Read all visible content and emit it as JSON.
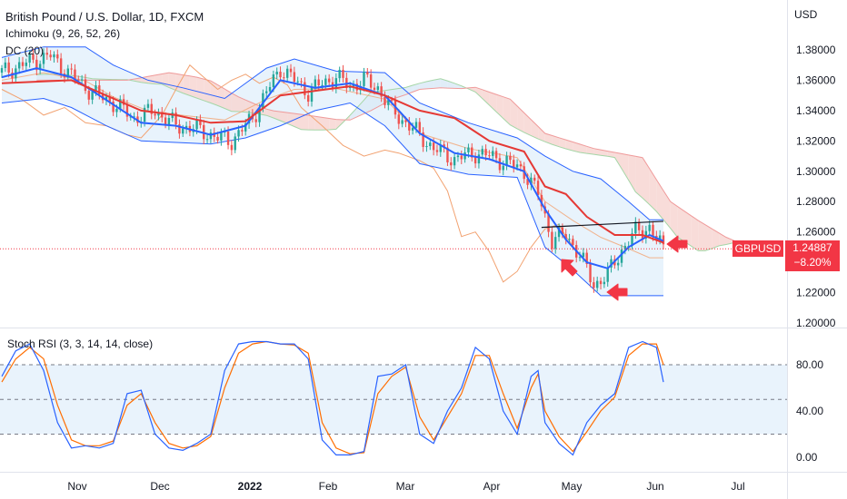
{
  "header": {
    "symbol_title": "British Pound / U.S. Dollar, 1D, FXCM",
    "indicator_1": "Ichimoku (9, 26, 52, 26)",
    "indicator_2": "DC (20)",
    "currency": "USD",
    "sub_indicator": "Stoch RSI (3, 3, 14, 14, close)"
  },
  "price_tag": {
    "symbol": "GBPUSD",
    "price": "1.24887",
    "change": "−8.20%",
    "color": "#f23645"
  },
  "colors": {
    "up": "#26a69a",
    "down": "#ef5350",
    "conversion": "#2962ff",
    "base": "#e53935",
    "lagging": "#f2a271",
    "cloud_bull": "#dbeaf7",
    "cloud_bear": "#f7d6d2",
    "donchian": "#2962ff",
    "donchian_fill": "#e8f3fc",
    "stoch_k": "#2962ff",
    "stoch_d": "#ff6d00"
  },
  "chart_data": [
    {
      "type": "candlestick",
      "title": "British Pound / U.S. Dollar, 1D, FXCM",
      "ylim": [
        1.19,
        1.395
      ],
      "y_ticks": [
        "1.38000",
        "1.36000",
        "1.34000",
        "1.32000",
        "1.30000",
        "1.28000",
        "1.26000",
        "1.22000",
        "1.20000"
      ],
      "x_ticks": [
        "Nov",
        "Dec",
        "2022",
        "Feb",
        "Mar",
        "Apr",
        "May",
        "Jun",
        "Jul"
      ],
      "last_price": 1.24887,
      "trendline": [
        [
          1.263,
          1.267
        ]
      ],
      "price_path": [
        [
          0,
          1.365
        ],
        [
          8,
          1.372
        ],
        [
          14,
          1.376
        ],
        [
          20,
          1.363
        ],
        [
          26,
          1.352
        ],
        [
          32,
          1.345
        ],
        [
          38,
          1.335
        ],
        [
          44,
          1.34
        ],
        [
          50,
          1.33
        ],
        [
          56,
          1.328
        ],
        [
          62,
          1.322
        ],
        [
          66,
          1.32
        ],
        [
          72,
          1.335
        ],
        [
          76,
          1.352
        ],
        [
          80,
          1.368
        ],
        [
          84,
          1.36
        ],
        [
          88,
          1.352
        ],
        [
          92,
          1.358
        ],
        [
          96,
          1.362
        ],
        [
          100,
          1.356
        ],
        [
          104,
          1.36
        ],
        [
          108,
          1.355
        ],
        [
          112,
          1.34
        ],
        [
          118,
          1.328
        ],
        [
          124,
          1.315
        ],
        [
          130,
          1.308
        ],
        [
          136,
          1.312
        ],
        [
          140,
          1.31
        ],
        [
          146,
          1.305
        ],
        [
          150,
          1.3
        ],
        [
          154,
          1.285
        ],
        [
          158,
          1.255
        ],
        [
          162,
          1.258
        ],
        [
          166,
          1.245
        ],
        [
          170,
          1.225
        ],
        [
          174,
          1.232
        ],
        [
          178,
          1.248
        ],
        [
          182,
          1.26
        ],
        [
          186,
          1.263
        ],
        [
          188,
          1.255
        ],
        [
          190,
          1.249
        ]
      ],
      "series": [
        {
          "name": "Conversion Line",
          "values": [
            [
              0,
              1.362
            ],
            [
              10,
              1.368
            ],
            [
              20,
              1.362
            ],
            [
              30,
              1.347
            ],
            [
              40,
              1.332
            ],
            [
              50,
              1.33
            ],
            [
              60,
              1.324
            ],
            [
              70,
              1.33
            ],
            [
              80,
              1.36
            ],
            [
              90,
              1.355
            ],
            [
              100,
              1.358
            ],
            [
              110,
              1.35
            ],
            [
              120,
              1.325
            ],
            [
              130,
              1.312
            ],
            [
              140,
              1.308
            ],
            [
              150,
              1.3
            ],
            [
              156,
              1.275
            ],
            [
              162,
              1.255
            ],
            [
              168,
              1.24
            ],
            [
              174,
              1.236
            ],
            [
              180,
              1.25
            ],
            [
              186,
              1.258
            ],
            [
              190,
              1.254
            ]
          ]
        },
        {
          "name": "Base Line",
          "values": [
            [
              0,
              1.358
            ],
            [
              20,
              1.36
            ],
            [
              30,
              1.35
            ],
            [
              40,
              1.34
            ],
            [
              50,
              1.337
            ],
            [
              60,
              1.332
            ],
            [
              70,
              1.333
            ],
            [
              80,
              1.35
            ],
            [
              90,
              1.353
            ],
            [
              100,
              1.356
            ],
            [
              110,
              1.35
            ],
            [
              120,
              1.34
            ],
            [
              130,
              1.335
            ],
            [
              140,
              1.32
            ],
            [
              150,
              1.313
            ],
            [
              156,
              1.29
            ],
            [
              162,
              1.285
            ],
            [
              168,
              1.27
            ],
            [
              176,
              1.258
            ],
            [
              184,
              1.258
            ],
            [
              190,
              1.253
            ]
          ]
        },
        {
          "name": "Donchian Upper",
          "values": [
            [
              0,
              1.375
            ],
            [
              12,
              1.382
            ],
            [
              24,
              1.382
            ],
            [
              32,
              1.37
            ],
            [
              42,
              1.36
            ],
            [
              52,
              1.355
            ],
            [
              64,
              1.348
            ],
            [
              76,
              1.368
            ],
            [
              84,
              1.374
            ],
            [
              96,
              1.366
            ],
            [
              110,
              1.365
            ],
            [
              120,
              1.345
            ],
            [
              134,
              1.332
            ],
            [
              148,
              1.322
            ],
            [
              156,
              1.31
            ],
            [
              164,
              1.3
            ],
            [
              172,
              1.295
            ],
            [
              180,
              1.28
            ],
            [
              186,
              1.268
            ],
            [
              190,
              1.268
            ]
          ]
        },
        {
          "name": "Donchian Lower",
          "values": [
            [
              0,
              1.345
            ],
            [
              12,
              1.348
            ],
            [
              20,
              1.342
            ],
            [
              30,
              1.33
            ],
            [
              40,
              1.32
            ],
            [
              60,
              1.318
            ],
            [
              70,
              1.322
            ],
            [
              80,
              1.33
            ],
            [
              90,
              1.34
            ],
            [
              100,
              1.345
            ],
            [
              110,
              1.33
            ],
            [
              120,
              1.305
            ],
            [
              134,
              1.298
            ],
            [
              148,
              1.296
            ],
            [
              156,
              1.25
            ],
            [
              164,
              1.235
            ],
            [
              172,
              1.218
            ],
            [
              190,
              1.218
            ]
          ]
        }
      ]
    },
    {
      "type": "line",
      "title": "Stoch RSI (3, 3, 14, 14, close)",
      "ylim": [
        -5,
        110
      ],
      "y_ticks": [
        "80.00",
        "40.00",
        "0.00"
      ],
      "bands": [
        80,
        50,
        20
      ],
      "series": [
        {
          "name": "K",
          "values": [
            [
              0,
              70
            ],
            [
              4,
              92
            ],
            [
              8,
              98
            ],
            [
              12,
              75
            ],
            [
              16,
              30
            ],
            [
              20,
              8
            ],
            [
              24,
              10
            ],
            [
              28,
              8
            ],
            [
              32,
              12
            ],
            [
              36,
              55
            ],
            [
              40,
              58
            ],
            [
              44,
              20
            ],
            [
              48,
              8
            ],
            [
              52,
              6
            ],
            [
              56,
              12
            ],
            [
              60,
              20
            ],
            [
              64,
              75
            ],
            [
              68,
              98
            ],
            [
              72,
              100
            ],
            [
              76,
              100
            ],
            [
              80,
              98
            ],
            [
              84,
              98
            ],
            [
              88,
              85
            ],
            [
              92,
              15
            ],
            [
              96,
              2
            ],
            [
              100,
              2
            ],
            [
              104,
              5
            ],
            [
              108,
              70
            ],
            [
              112,
              72
            ],
            [
              116,
              80
            ],
            [
              120,
              20
            ],
            [
              124,
              12
            ],
            [
              128,
              40
            ],
            [
              132,
              60
            ],
            [
              136,
              95
            ],
            [
              140,
              85
            ],
            [
              144,
              40
            ],
            [
              148,
              20
            ],
            [
              152,
              70
            ],
            [
              154,
              75
            ],
            [
              156,
              30
            ],
            [
              160,
              12
            ],
            [
              164,
              2
            ],
            [
              168,
              30
            ],
            [
              172,
              45
            ],
            [
              176,
              55
            ],
            [
              180,
              95
            ],
            [
              184,
              100
            ],
            [
              188,
              95
            ],
            [
              190,
              65
            ]
          ]
        },
        {
          "name": "D",
          "values": [
            [
              0,
              65
            ],
            [
              4,
              85
            ],
            [
              8,
              95
            ],
            [
              12,
              85
            ],
            [
              16,
              45
            ],
            [
              20,
              15
            ],
            [
              24,
              10
            ],
            [
              28,
              10
            ],
            [
              32,
              14
            ],
            [
              36,
              45
            ],
            [
              40,
              55
            ],
            [
              44,
              30
            ],
            [
              48,
              12
            ],
            [
              52,
              8
            ],
            [
              56,
              10
            ],
            [
              60,
              18
            ],
            [
              64,
              60
            ],
            [
              68,
              90
            ],
            [
              72,
              98
            ],
            [
              76,
              100
            ],
            [
              80,
              98
            ],
            [
              84,
              97
            ],
            [
              88,
              90
            ],
            [
              92,
              30
            ],
            [
              96,
              8
            ],
            [
              100,
              3
            ],
            [
              104,
              4
            ],
            [
              108,
              55
            ],
            [
              112,
              70
            ],
            [
              116,
              78
            ],
            [
              120,
              35
            ],
            [
              124,
              15
            ],
            [
              128,
              35
            ],
            [
              132,
              55
            ],
            [
              136,
              88
            ],
            [
              140,
              88
            ],
            [
              144,
              55
            ],
            [
              148,
              25
            ],
            [
              152,
              60
            ],
            [
              154,
              72
            ],
            [
              156,
              40
            ],
            [
              160,
              18
            ],
            [
              164,
              5
            ],
            [
              168,
              22
            ],
            [
              172,
              40
            ],
            [
              176,
              52
            ],
            [
              180,
              88
            ],
            [
              184,
              98
            ],
            [
              188,
              98
            ],
            [
              190,
              80
            ]
          ]
        }
      ]
    }
  ]
}
